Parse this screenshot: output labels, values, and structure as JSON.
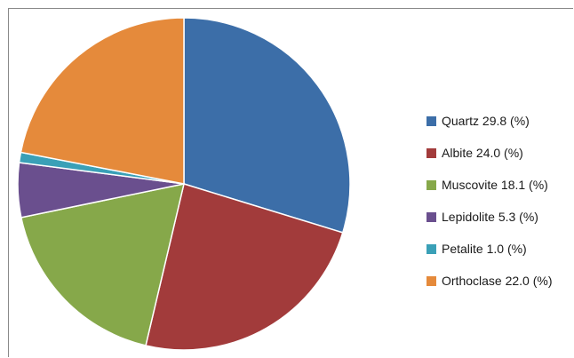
{
  "chart_data": {
    "type": "pie",
    "slices": [
      {
        "label": "Quartz 29.8 (%)",
        "value": 29.8,
        "color": "#3c6ea8"
      },
      {
        "label": "Albite 24.0 (%)",
        "value": 24.0,
        "color": "#a23b3b"
      },
      {
        "label": "Muscovite 18.1 (%)",
        "value": 18.1,
        "color": "#86a84a"
      },
      {
        "label": "Lepidolite 5.3 (%)",
        "value": 5.3,
        "color": "#6a4f8e"
      },
      {
        "label": "Petalite 1.0 (%)",
        "value": 1.0,
        "color": "#3aa0b7"
      },
      {
        "label": "Orthoclase 22.0 (%)",
        "value": 22.0,
        "color": "#e58a3b"
      }
    ],
    "legend_position": "right"
  }
}
